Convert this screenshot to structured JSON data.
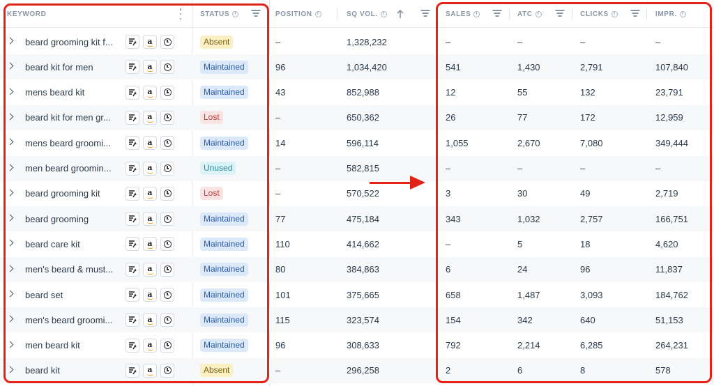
{
  "headers": {
    "keyword": "KEYWORD",
    "status": "STATUS",
    "position": "POSITION",
    "sq_vol": "SQ VOL.",
    "sales": "SALES",
    "atc": "ATC",
    "clicks": "CLICKS",
    "impr": "IMPR."
  },
  "row_buttons": {
    "amazon_glyph": "a"
  },
  "rows": [
    {
      "keyword": "beard grooming kit f...",
      "status": "Absent",
      "status_type": "absent",
      "position": "–",
      "sq_vol": "1,328,232",
      "sales": "–",
      "atc": "–",
      "clicks": "–",
      "impr": "–"
    },
    {
      "keyword": "beard kit for men",
      "status": "Maintained",
      "status_type": "maintained",
      "position": "96",
      "sq_vol": "1,034,420",
      "sales": "541",
      "atc": "1,430",
      "clicks": "2,791",
      "impr": "107,840"
    },
    {
      "keyword": "mens beard kit",
      "status": "Maintained",
      "status_type": "maintained",
      "position": "43",
      "sq_vol": "852,988",
      "sales": "12",
      "atc": "55",
      "clicks": "132",
      "impr": "23,791"
    },
    {
      "keyword": "beard kit for men gr...",
      "status": "Lost",
      "status_type": "lost",
      "position": "–",
      "sq_vol": "650,362",
      "sales": "26",
      "atc": "77",
      "clicks": "172",
      "impr": "12,959"
    },
    {
      "keyword": "mens beard groomi...",
      "status": "Maintained",
      "status_type": "maintained",
      "position": "14",
      "sq_vol": "596,114",
      "sales": "1,055",
      "atc": "2,670",
      "clicks": "7,080",
      "impr": "349,444"
    },
    {
      "keyword": "men beard groomin...",
      "status": "Unused",
      "status_type": "unused",
      "position": "–",
      "sq_vol": "582,815",
      "sales": "–",
      "atc": "–",
      "clicks": "–",
      "impr": "–"
    },
    {
      "keyword": "beard grooming kit",
      "status": "Lost",
      "status_type": "lost",
      "position": "–",
      "sq_vol": "570,522",
      "sales": "3",
      "atc": "30",
      "clicks": "49",
      "impr": "2,719"
    },
    {
      "keyword": "beard grooming",
      "status": "Maintained",
      "status_type": "maintained",
      "position": "77",
      "sq_vol": "475,184",
      "sales": "343",
      "atc": "1,032",
      "clicks": "2,757",
      "impr": "166,751"
    },
    {
      "keyword": "beard care kit",
      "status": "Maintained",
      "status_type": "maintained",
      "position": "110",
      "sq_vol": "414,662",
      "sales": "–",
      "atc": "5",
      "clicks": "18",
      "impr": "4,620"
    },
    {
      "keyword": "men's beard & must...",
      "status": "Maintained",
      "status_type": "maintained",
      "position": "80",
      "sq_vol": "384,863",
      "sales": "6",
      "atc": "24",
      "clicks": "96",
      "impr": "11,837"
    },
    {
      "keyword": "beard set",
      "status": "Maintained",
      "status_type": "maintained",
      "position": "101",
      "sq_vol": "375,665",
      "sales": "658",
      "atc": "1,487",
      "clicks": "3,093",
      "impr": "184,762"
    },
    {
      "keyword": "men's beard groomi...",
      "status": "Maintained",
      "status_type": "maintained",
      "position": "115",
      "sq_vol": "323,574",
      "sales": "154",
      "atc": "342",
      "clicks": "640",
      "impr": "51,153"
    },
    {
      "keyword": "men beard kit",
      "status": "Maintained",
      "status_type": "maintained",
      "position": "96",
      "sq_vol": "308,633",
      "sales": "792",
      "atc": "2,214",
      "clicks": "6,285",
      "impr": "264,231"
    },
    {
      "keyword": "beard kit",
      "status": "Absent",
      "status_type": "absent",
      "position": "–",
      "sq_vol": "296,258",
      "sales": "2",
      "atc": "6",
      "clicks": "8",
      "impr": "578"
    }
  ],
  "colors": {
    "highlight_red": "#e2231a",
    "maintained_bg": "#dbe9fb",
    "absent_bg": "#fbf0c4",
    "lost_bg": "#fbe3e3",
    "unused_bg": "#d9f3f6"
  }
}
